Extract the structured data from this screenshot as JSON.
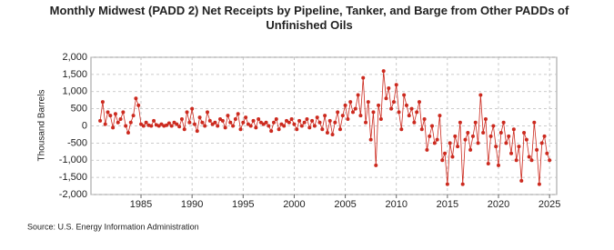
{
  "chart_data": {
    "type": "line",
    "title": "Monthly Midwest (PADD 2) Net Receipts by Pipeline, Tanker, and Barge from Other PADDs of Unfinished Oils",
    "y_label": "Thousand Barrels",
    "source": "Source: U.S. Energy Information Administration",
    "x": [
      1981,
      1981.25,
      1981.5,
      1981.75,
      1982,
      1982.25,
      1982.5,
      1982.75,
      1983,
      1983.25,
      1983.5,
      1983.75,
      1984,
      1984.25,
      1984.5,
      1984.75,
      1985,
      1985.25,
      1985.5,
      1985.75,
      1986,
      1986.25,
      1986.5,
      1986.75,
      1987,
      1987.25,
      1987.5,
      1987.75,
      1988,
      1988.25,
      1988.5,
      1988.75,
      1989,
      1989.25,
      1989.5,
      1989.75,
      1990,
      1990.25,
      1990.5,
      1990.75,
      1991,
      1991.25,
      1991.5,
      1991.75,
      1992,
      1992.25,
      1992.5,
      1992.75,
      1993,
      1993.25,
      1993.5,
      1993.75,
      1994,
      1994.25,
      1994.5,
      1994.75,
      1995,
      1995.25,
      1995.5,
      1995.75,
      1996,
      1996.25,
      1996.5,
      1996.75,
      1997,
      1997.25,
      1997.5,
      1997.75,
      1998,
      1998.25,
      1998.5,
      1998.75,
      1999,
      1999.25,
      1999.5,
      1999.75,
      2000,
      2000.25,
      2000.5,
      2000.75,
      2001,
      2001.25,
      2001.5,
      2001.75,
      2002,
      2002.25,
      2002.5,
      2002.75,
      2003,
      2003.25,
      2003.5,
      2003.75,
      2004,
      2004.25,
      2004.5,
      2004.75,
      2005,
      2005.25,
      2005.5,
      2005.75,
      2006,
      2006.25,
      2006.5,
      2006.75,
      2007,
      2007.25,
      2007.5,
      2007.75,
      2008,
      2008.25,
      2008.5,
      2008.75,
      2009,
      2009.25,
      2009.5,
      2009.75,
      2010,
      2010.25,
      2010.5,
      2010.75,
      2011,
      2011.25,
      2011.5,
      2011.75,
      2012,
      2012.25,
      2012.5,
      2012.75,
      2013,
      2013.25,
      2013.5,
      2013.75,
      2014,
      2014.25,
      2014.5,
      2014.75,
      2015,
      2015.25,
      2015.5,
      2015.75,
      2016,
      2016.25,
      2016.5,
      2016.75,
      2017,
      2017.25,
      2017.5,
      2017.75,
      2018,
      2018.25,
      2018.5,
      2018.75,
      2019,
      2019.25,
      2019.5,
      2019.75,
      2020,
      2020.25,
      2020.5,
      2020.75,
      2021,
      2021.25,
      2021.5,
      2021.75,
      2022,
      2022.25,
      2022.5,
      2022.75,
      2023,
      2023.25,
      2023.5,
      2023.75,
      2024,
      2024.25,
      2024.5,
      2024.75,
      2025
    ],
    "series": [
      {
        "color": "#cc2a1f",
        "values": [
          150,
          700,
          50,
          400,
          300,
          -50,
          350,
          100,
          200,
          400,
          0,
          -200,
          100,
          300,
          800,
          600,
          50,
          0,
          100,
          20,
          0,
          150,
          30,
          0,
          50,
          0,
          20,
          80,
          0,
          100,
          50,
          -20,
          200,
          -100,
          400,
          100,
          500,
          50,
          -150,
          250,
          100,
          0,
          400,
          150,
          50,
          100,
          0,
          200,
          150,
          -50,
          300,
          100,
          0,
          200,
          350,
          -100,
          100,
          250,
          50,
          0,
          150,
          -50,
          200,
          100,
          50,
          100,
          0,
          -150,
          100,
          200,
          -100,
          50,
          0,
          150,
          100,
          200,
          50,
          -100,
          150,
          0,
          100,
          200,
          -50,
          150,
          0,
          250,
          100,
          -100,
          300,
          -200,
          150,
          -250,
          100,
          400,
          -100,
          300,
          600,
          200,
          700,
          400,
          500,
          900,
          300,
          1400,
          100,
          700,
          -400,
          400,
          -1150,
          600,
          200,
          1600,
          800,
          1100,
          500,
          700,
          1200,
          400,
          -100,
          900,
          600,
          300,
          500,
          100,
          400,
          700,
          -100,
          200,
          -700,
          -300,
          0,
          -500,
          -400,
          300,
          -1000,
          -800,
          -1700,
          -500,
          -900,
          -300,
          -600,
          100,
          -1700,
          -400,
          -200,
          -700,
          -300,
          100,
          -500,
          900,
          -200,
          200,
          -1100,
          -300,
          0,
          -600,
          -1150,
          -200,
          100,
          -500,
          -300,
          -800,
          -100,
          -1000,
          -600,
          -1600,
          -200,
          -400,
          -900,
          -1000,
          100,
          -700,
          -1700,
          -500,
          -300,
          -800,
          -1000
        ]
      }
    ],
    "xlim": [
      1980.1,
      2025.7
    ],
    "xticks": [
      1985,
      1990,
      1995,
      2000,
      2005,
      2010,
      2015,
      2020,
      2025
    ],
    "ylim": [
      -2000,
      2000
    ],
    "yticks": [
      {
        "value": -2000,
        "label": "-2,000"
      },
      {
        "value": -1500,
        "label": "-1,500"
      },
      {
        "value": -1000,
        "label": "-1,000"
      },
      -500,
      0,
      500,
      {
        "value": 1000,
        "label": "1,000"
      },
      {
        "value": 1500,
        "label": "1,500"
      },
      {
        "value": 2000,
        "label": "2,000"
      }
    ],
    "grid": true
  }
}
